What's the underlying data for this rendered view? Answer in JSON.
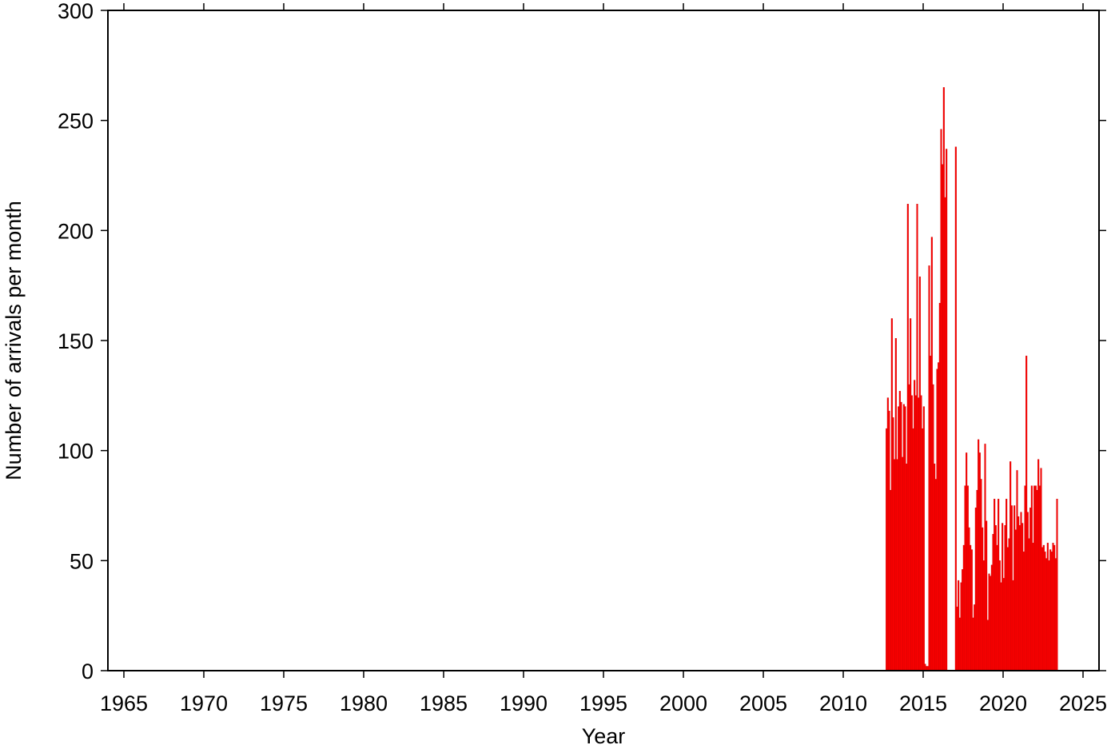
{
  "chart_data": {
    "type": "histogram",
    "xlabel": "Year",
    "ylabel": "Number of arrivals per month",
    "color": "#ff0000",
    "edgecolor": "#cc0000",
    "xlim": [
      1964,
      2026
    ],
    "ylim": [
      0,
      300
    ],
    "xticks": [
      1965,
      1970,
      1975,
      1980,
      1985,
      1990,
      1995,
      2000,
      2005,
      2010,
      2015,
      2020,
      2025
    ],
    "yticks": [
      0,
      50,
      100,
      150,
      200,
      250,
      300
    ],
    "bins": [
      2012.667,
      2012.75,
      2012.833,
      2012.917,
      2013,
      2013.083,
      2013.167,
      2013.25,
      2013.333,
      2013.417,
      2013.5,
      2013.583,
      2013.667,
      2013.75,
      2013.833,
      2013.917,
      2014,
      2014.083,
      2014.167,
      2014.25,
      2014.333,
      2014.417,
      2014.5,
      2014.583,
      2014.667,
      2014.75,
      2014.833,
      2014.917,
      2015,
      2015.083,
      2015.167,
      2015.25,
      2015.333,
      2015.417,
      2015.5,
      2015.583,
      2015.667,
      2015.75,
      2015.833,
      2015.917,
      2016,
      2016.083,
      2016.167,
      2016.25,
      2016.333,
      2016.417,
      2016.5,
      2016.583,
      2016.667,
      2016.75,
      2016.833,
      2016.917,
      2017,
      2017.083,
      2017.167,
      2017.25,
      2017.333,
      2017.417,
      2017.5,
      2017.583,
      2017.667,
      2017.75,
      2017.833,
      2017.917,
      2018,
      2018.083,
      2018.167,
      2018.25,
      2018.333,
      2018.417,
      2018.5,
      2018.583,
      2018.667,
      2018.75,
      2018.833,
      2018.917,
      2019,
      2019.083,
      2019.167,
      2019.25,
      2019.333,
      2019.417,
      2019.5,
      2019.583,
      2019.667,
      2019.75,
      2019.833,
      2019.917,
      2020,
      2020.083,
      2020.167,
      2020.25,
      2020.333,
      2020.417,
      2020.5,
      2020.583,
      2020.667,
      2020.75,
      2020.833,
      2020.917,
      2021,
      2021.083,
      2021.167,
      2021.25,
      2021.333,
      2021.417,
      2021.5,
      2021.583,
      2021.667,
      2021.75,
      2021.833,
      2021.917,
      2022,
      2022.083,
      2022.167,
      2022.25,
      2022.333,
      2022.417,
      2022.5,
      2022.583,
      2022.667,
      2022.75,
      2022.833,
      2022.917,
      2023,
      2023.083,
      2023.167,
      2023.25,
      2023.333,
      2023.417
    ],
    "values": [
      110,
      124,
      118,
      82,
      160,
      115,
      96,
      151,
      96,
      120,
      127,
      122,
      97,
      121,
      120,
      94,
      212,
      130,
      160,
      125,
      110,
      132,
      125,
      212,
      124,
      179,
      125,
      110,
      120,
      3,
      2,
      2,
      184,
      143,
      197,
      130,
      94,
      87,
      137,
      140,
      167,
      246,
      230,
      265,
      215,
      237,
      0,
      0,
      0,
      0,
      0,
      0,
      238,
      29,
      41,
      24,
      40,
      46,
      57,
      84,
      99,
      84,
      65,
      57,
      55,
      24,
      30,
      74,
      82,
      105,
      99,
      87,
      65,
      50,
      103,
      68,
      23,
      44,
      43,
      48,
      62,
      78,
      66,
      57,
      78,
      50,
      40,
      67,
      42,
      66,
      78,
      56,
      60,
      95,
      75,
      41,
      75,
      64,
      91,
      70,
      66,
      72,
      67,
      54,
      84,
      143,
      72,
      60,
      74,
      84,
      58,
      84,
      84,
      82,
      96,
      84,
      92,
      56,
      57,
      54,
      51,
      58,
      50,
      55,
      54,
      58,
      57,
      51,
      78
    ]
  }
}
